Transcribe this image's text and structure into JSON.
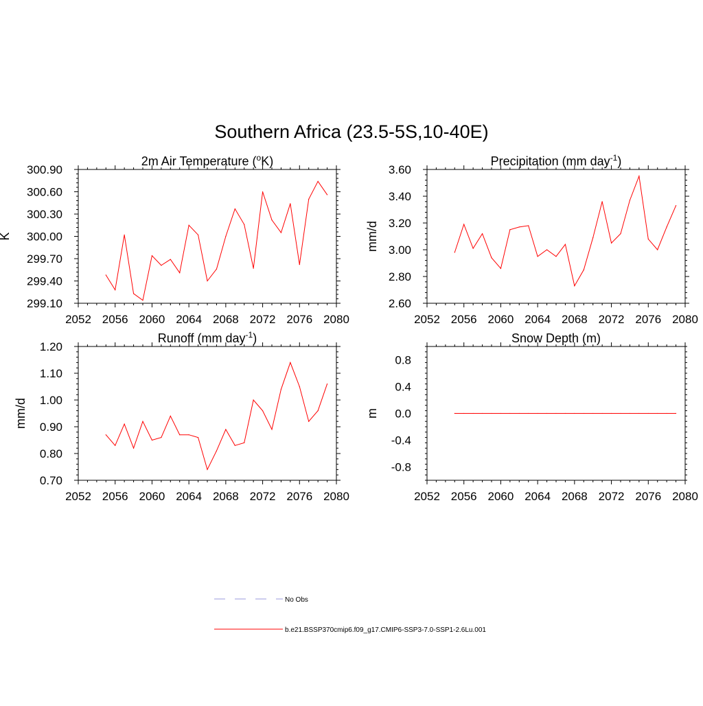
{
  "figure": {
    "title": "Southern Africa (23.5-5S,10-40E)"
  },
  "colors": {
    "series": "#ff0000",
    "obs": "#9999dd",
    "axis": "#000000"
  },
  "legend": {
    "entries": [
      {
        "label": "No Obs",
        "style": "dashed",
        "color": "#9999dd"
      },
      {
        "label": "b.e21.BSSP370cmip6.f09_g17.CMIP6-SSP3-7.0-SSP1-2.6Lu.001",
        "style": "solid",
        "color": "#ff0000"
      }
    ]
  },
  "chart_data": [
    {
      "type": "line",
      "title": "2m Air Temperature (",
      "title_sup": "o",
      "title_after": "K)",
      "ylabel": "K",
      "xlim": [
        2052,
        2080
      ],
      "ylim": [
        299.1,
        300.9
      ],
      "xticks": [
        2052,
        2056,
        2060,
        2064,
        2068,
        2072,
        2076,
        2080
      ],
      "yticks": [
        299.1,
        299.4,
        299.7,
        300.0,
        300.3,
        300.6,
        300.9
      ],
      "ytick_labels": [
        "299.10",
        "299.40",
        "299.70",
        "300.00",
        "300.30",
        "300.60",
        "300.90"
      ],
      "xtick_labels": [
        "2052",
        "2056",
        "2060",
        "2064",
        "2068",
        "2072",
        "2076",
        "2080"
      ],
      "x": [
        2055,
        2056,
        2057,
        2058,
        2059,
        2060,
        2061,
        2062,
        2063,
        2064,
        2065,
        2066,
        2067,
        2068,
        2069,
        2070,
        2071,
        2072,
        2073,
        2074,
        2075,
        2076,
        2077,
        2078,
        2079
      ],
      "values": [
        299.48,
        299.28,
        300.02,
        299.23,
        299.14,
        299.74,
        299.61,
        299.69,
        299.51,
        300.15,
        300.02,
        299.4,
        299.56,
        300.0,
        300.37,
        300.16,
        299.57,
        300.6,
        300.22,
        300.05,
        300.44,
        299.62,
        300.5,
        300.74,
        300.56
      ]
    },
    {
      "type": "line",
      "title": "Precipitation (mm day",
      "title_sup": "-1",
      "title_after": ")",
      "ylabel": "mm/d",
      "xlim": [
        2052,
        2080
      ],
      "ylim": [
        2.6,
        3.6
      ],
      "xticks": [
        2052,
        2056,
        2060,
        2064,
        2068,
        2072,
        2076,
        2080
      ],
      "yticks": [
        2.6,
        2.8,
        3.0,
        3.2,
        3.4,
        3.6
      ],
      "ytick_labels": [
        "2.60",
        "2.80",
        "3.00",
        "3.20",
        "3.40",
        "3.60"
      ],
      "xtick_labels": [
        "2052",
        "2056",
        "2060",
        "2064",
        "2068",
        "2072",
        "2076",
        "2080"
      ],
      "x": [
        2055,
        2056,
        2057,
        2058,
        2059,
        2060,
        2061,
        2062,
        2063,
        2064,
        2065,
        2066,
        2067,
        2068,
        2069,
        2070,
        2071,
        2072,
        2073,
        2074,
        2075,
        2076,
        2077,
        2078,
        2079
      ],
      "values": [
        2.98,
        3.19,
        3.01,
        3.12,
        2.94,
        2.86,
        3.15,
        3.17,
        3.18,
        2.95,
        3.0,
        2.95,
        3.04,
        2.73,
        2.85,
        3.09,
        3.36,
        3.05,
        3.12,
        3.37,
        3.55,
        3.08,
        3.0,
        3.17,
        3.33
      ]
    },
    {
      "type": "line",
      "title": "Runoff (mm day",
      "title_sup": "-1",
      "title_after": ")",
      "ylabel": "mm/d",
      "xlim": [
        2052,
        2080
      ],
      "ylim": [
        0.7,
        1.2
      ],
      "xticks": [
        2052,
        2056,
        2060,
        2064,
        2068,
        2072,
        2076,
        2080
      ],
      "yticks": [
        0.7,
        0.8,
        0.9,
        1.0,
        1.1,
        1.2
      ],
      "ytick_labels": [
        "0.70",
        "0.80",
        "0.90",
        "1.00",
        "1.10",
        "1.20"
      ],
      "xtick_labels": [
        "2052",
        "2056",
        "2060",
        "2064",
        "2068",
        "2072",
        "2076",
        "2080"
      ],
      "x": [
        2055,
        2056,
        2057,
        2058,
        2059,
        2060,
        2061,
        2062,
        2063,
        2064,
        2065,
        2066,
        2067,
        2068,
        2069,
        2070,
        2071,
        2072,
        2073,
        2074,
        2075,
        2076,
        2077,
        2078,
        2079
      ],
      "values": [
        0.87,
        0.83,
        0.91,
        0.82,
        0.92,
        0.85,
        0.86,
        0.94,
        0.87,
        0.87,
        0.86,
        0.74,
        0.81,
        0.89,
        0.83,
        0.84,
        1.0,
        0.96,
        0.89,
        1.04,
        1.14,
        1.05,
        0.92,
        0.96,
        1.06
      ]
    },
    {
      "type": "line",
      "title": "Snow Depth (m)",
      "title_sup": "",
      "title_after": "",
      "ylabel": "m",
      "xlim": [
        2052,
        2080
      ],
      "ylim": [
        -1.0,
        1.0
      ],
      "xticks": [
        2052,
        2056,
        2060,
        2064,
        2068,
        2072,
        2076,
        2080
      ],
      "yticks": [
        -0.8,
        -0.4,
        0.0,
        0.4,
        0.8
      ],
      "ytick_labels": [
        "-0.8",
        "-0.4",
        "0.0",
        "0.4",
        "0.8"
      ],
      "xtick_labels": [
        "2052",
        "2056",
        "2060",
        "2064",
        "2068",
        "2072",
        "2076",
        "2080"
      ],
      "x": [
        2055,
        2056,
        2057,
        2058,
        2059,
        2060,
        2061,
        2062,
        2063,
        2064,
        2065,
        2066,
        2067,
        2068,
        2069,
        2070,
        2071,
        2072,
        2073,
        2074,
        2075,
        2076,
        2077,
        2078,
        2079
      ],
      "values": [
        0,
        0,
        0,
        0,
        0,
        0,
        0,
        0,
        0,
        0,
        0,
        0,
        0,
        0,
        0,
        0,
        0,
        0,
        0,
        0,
        0,
        0,
        0,
        0,
        0
      ]
    }
  ]
}
